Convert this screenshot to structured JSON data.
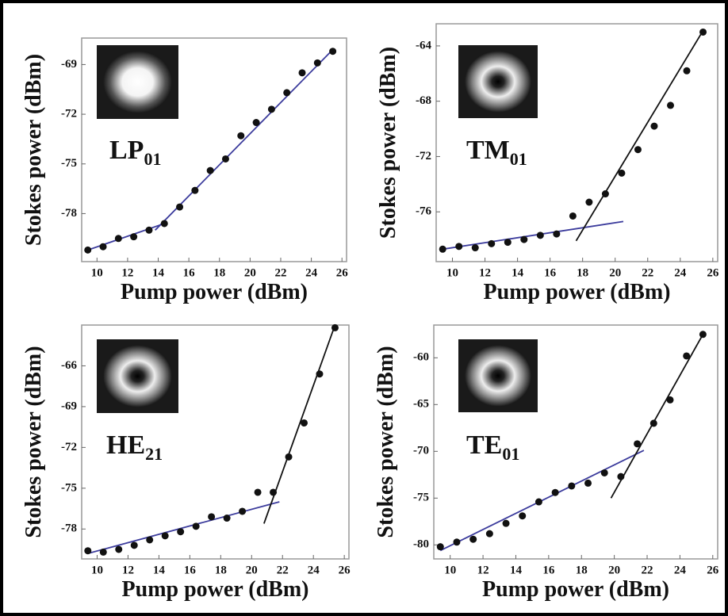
{
  "chart_data": [
    {
      "type": "scatter",
      "mode_label": {
        "text": "LP",
        "subscript": "01"
      },
      "x_label": "Pump power (dBm)",
      "y_label": "Stokes power (dBm)",
      "x": [
        9.4,
        10.4,
        11.4,
        12.4,
        13.4,
        14.4,
        15.4,
        16.4,
        17.4,
        18.4,
        19.4,
        20.4,
        21.4,
        22.4,
        23.4,
        24.4,
        25.4
      ],
      "values": [
        -80.2,
        -80.0,
        -79.5,
        -79.4,
        -79.0,
        -78.6,
        -77.6,
        -76.6,
        -75.4,
        -74.7,
        -73.3,
        -72.5,
        -71.7,
        -70.7,
        -69.5,
        -68.9,
        -68.2
      ],
      "color": "#111111",
      "fits": [
        {
          "color": "#3b3b9c",
          "x": [
            9.4,
            14.4
          ],
          "values": [
            -80.2,
            -78.6
          ]
        },
        {
          "color": "#3b3b9c",
          "x": [
            13.8,
            25.4
          ],
          "values": [
            -79.0,
            -68.1
          ]
        }
      ],
      "xlim": [
        9,
        26.3
      ],
      "xticks": [
        10,
        12,
        14,
        16,
        18,
        20,
        22,
        24,
        26
      ],
      "ylim": [
        -80.9,
        -67.4
      ],
      "yticks": [
        -78,
        -75,
        -72,
        -69
      ]
    },
    {
      "type": "scatter",
      "mode_label": {
        "text": "TM",
        "subscript": "01"
      },
      "x_label": "Pump power (dBm)",
      "y_label": "Stokes power (dBm)",
      "x": [
        9.4,
        10.4,
        11.4,
        12.4,
        13.4,
        14.4,
        15.4,
        16.4,
        17.4,
        18.4,
        19.4,
        20.4,
        21.4,
        22.4,
        23.4,
        24.4,
        25.4
      ],
      "values": [
        -78.7,
        -78.5,
        -78.6,
        -78.3,
        -78.2,
        -78.0,
        -77.7,
        -77.6,
        -76.3,
        -75.3,
        -74.7,
        -73.2,
        -71.5,
        -69.8,
        -68.3,
        -65.8,
        -63.0
      ],
      "color": "#111111",
      "fits": [
        {
          "color": "#3b3b9c",
          "x": [
            9.4,
            20.5
          ],
          "values": [
            -78.7,
            -76.7
          ]
        },
        {
          "color": "#111111",
          "x": [
            17.6,
            25.4
          ],
          "values": [
            -78.1,
            -62.9
          ]
        }
      ],
      "xlim": [
        9,
        26.3
      ],
      "xticks": [
        10,
        12,
        14,
        16,
        18,
        20,
        22,
        24,
        26
      ],
      "ylim": [
        -79.6,
        -62.4
      ],
      "yticks": [
        -76,
        -72,
        -68,
        -64
      ]
    },
    {
      "type": "scatter",
      "mode_label": {
        "text": "HE",
        "subscript": "21"
      },
      "x_label": "Pump power (dBm)",
      "y_label": "Stokes power (dBm)",
      "x": [
        9.4,
        10.4,
        11.4,
        12.4,
        13.4,
        14.4,
        15.4,
        16.4,
        17.4,
        18.4,
        19.4,
        20.4,
        21.4,
        22.4,
        23.4,
        24.4,
        25.4
      ],
      "values": [
        -79.6,
        -79.7,
        -79.5,
        -79.2,
        -78.8,
        -78.5,
        -78.2,
        -77.8,
        -77.1,
        -77.2,
        -76.7,
        -75.3,
        -75.3,
        -72.7,
        -70.2,
        -66.6,
        -63.2
      ],
      "color": "#111111",
      "fits": [
        {
          "color": "#3b3b9c",
          "x": [
            9.4,
            21.8
          ],
          "values": [
            -79.8,
            -76.0
          ]
        },
        {
          "color": "#111111",
          "x": [
            20.8,
            25.4
          ],
          "values": [
            -77.6,
            -63.0
          ]
        }
      ],
      "xlim": [
        9,
        26.3
      ],
      "xticks": [
        10,
        12,
        14,
        16,
        18,
        20,
        22,
        24,
        26
      ],
      "ylim": [
        -80.2,
        -63.0
      ],
      "yticks": [
        -78,
        -75,
        -72,
        -69,
        -66
      ]
    },
    {
      "type": "scatter",
      "mode_label": {
        "text": "TE",
        "subscript": "01"
      },
      "x_label": "Pump power (dBm)",
      "y_label": "Stokes power (dBm)",
      "x": [
        9.4,
        10.4,
        11.4,
        12.4,
        13.4,
        14.4,
        15.4,
        16.4,
        17.4,
        18.4,
        19.4,
        20.4,
        21.4,
        22.4,
        23.4,
        24.4,
        25.4
      ],
      "values": [
        -80.2,
        -79.7,
        -79.4,
        -78.8,
        -77.7,
        -76.9,
        -75.4,
        -74.4,
        -73.7,
        -73.4,
        -72.3,
        -72.7,
        -69.2,
        -67.0,
        -64.5,
        -59.8,
        -57.5
      ],
      "color": "#111111",
      "fits": [
        {
          "color": "#3b3b9c",
          "x": [
            9.4,
            21.8
          ],
          "values": [
            -80.6,
            -69.9
          ]
        },
        {
          "color": "#111111",
          "x": [
            19.8,
            25.4
          ],
          "values": [
            -75.0,
            -57.5
          ]
        }
      ],
      "xlim": [
        9,
        26.3
      ],
      "xticks": [
        10,
        12,
        14,
        16,
        18,
        20,
        22,
        24,
        26
      ],
      "ylim": [
        -81.5,
        -56.5
      ],
      "yticks": [
        -80,
        -75,
        -70,
        -65,
        -60
      ]
    }
  ]
}
